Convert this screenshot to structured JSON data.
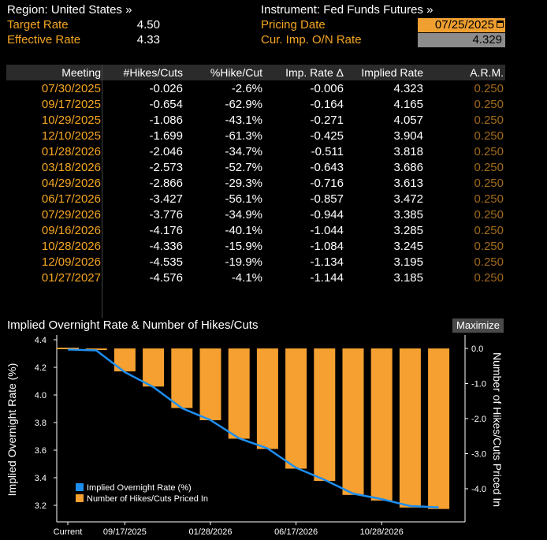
{
  "header": {
    "region_label": "Region: United States »",
    "target_label": "Target Rate",
    "target_value": "4.50",
    "effective_label": "Effective Rate",
    "effective_value": "4.33",
    "instrument_label": "Instrument: Fed Funds Futures »",
    "pricing_label": "Pricing Date",
    "pricing_value": "07/25/2025",
    "cur_imp_label": "Cur. Imp. O/N Rate",
    "cur_imp_value": "4.329"
  },
  "table": {
    "columns": [
      "Meeting",
      "#Hikes/Cuts",
      "%Hike/Cut",
      "Imp. Rate Δ",
      "Implied Rate",
      "A.R.M."
    ],
    "rows": [
      [
        "07/30/2025",
        "-0.026",
        "-2.6%",
        "-0.006",
        "4.323",
        "0.250"
      ],
      [
        "09/17/2025",
        "-0.654",
        "-62.9%",
        "-0.164",
        "4.165",
        "0.250"
      ],
      [
        "10/29/2025",
        "-1.086",
        "-43.1%",
        "-0.271",
        "4.057",
        "0.250"
      ],
      [
        "12/10/2025",
        "-1.699",
        "-61.3%",
        "-0.425",
        "3.904",
        "0.250"
      ],
      [
        "01/28/2026",
        "-2.046",
        "-34.7%",
        "-0.511",
        "3.818",
        "0.250"
      ],
      [
        "03/18/2026",
        "-2.573",
        "-52.7%",
        "-0.643",
        "3.686",
        "0.250"
      ],
      [
        "04/29/2026",
        "-2.866",
        "-29.3%",
        "-0.716",
        "3.613",
        "0.250"
      ],
      [
        "06/17/2026",
        "-3.427",
        "-56.1%",
        "-0.857",
        "3.472",
        "0.250"
      ],
      [
        "07/29/2026",
        "-3.776",
        "-34.9%",
        "-0.944",
        "3.385",
        "0.250"
      ],
      [
        "09/16/2026",
        "-4.176",
        "-40.1%",
        "-1.044",
        "3.285",
        "0.250"
      ],
      [
        "10/28/2026",
        "-4.336",
        "-15.9%",
        "-1.084",
        "3.245",
        "0.250"
      ],
      [
        "12/09/2026",
        "-4.535",
        "-19.9%",
        "-1.134",
        "3.195",
        "0.250"
      ],
      [
        "01/27/2027",
        "-4.576",
        "-4.1%",
        "-1.144",
        "3.185",
        "0.250"
      ]
    ]
  },
  "chart_panel": {
    "title": "Implied Overnight Rate & Number of Hikes/Cuts",
    "maximize_label": "Maximize"
  },
  "chart_data": {
    "type": "bar",
    "x_tick_labels": [
      "Current",
      "09/17/2025",
      "01/28/2026",
      "06/17/2026",
      "10/28/2026"
    ],
    "categories": [
      "Current",
      "07/30/2025",
      "09/17/2025",
      "10/29/2025",
      "12/10/2025",
      "01/28/2026",
      "03/18/2026",
      "04/29/2026",
      "06/17/2026",
      "07/29/2026",
      "09/16/2026",
      "10/28/2026",
      "12/09/2026",
      "01/27/2027"
    ],
    "series": [
      {
        "name": "Implied Overnight Rate (%)",
        "type": "line",
        "axis": "left",
        "color": "#1e8ff0",
        "values": [
          4.329,
          4.323,
          4.165,
          4.057,
          3.904,
          3.818,
          3.686,
          3.613,
          3.472,
          3.385,
          3.285,
          3.245,
          3.195,
          3.185
        ]
      },
      {
        "name": "Number of Hikes/Cuts Priced In",
        "type": "bar",
        "axis": "right",
        "color": "#f5a030",
        "values": [
          0,
          -0.026,
          -0.654,
          -1.086,
          -1.699,
          -2.046,
          -2.573,
          -2.866,
          -3.427,
          -3.776,
          -4.176,
          -4.336,
          -4.535,
          -4.576
        ]
      }
    ],
    "ylabel_left": "Implied Overnight Rate (%)",
    "ylabel_right": "Number of Hikes/Cuts Priced In",
    "ylim_left": [
      3.13,
      4.42
    ],
    "ylim_right": [
      -4.6,
      0.1
    ],
    "yticks_left": [
      "4.4",
      "4.2",
      "4.0",
      "3.8",
      "3.6",
      "3.4",
      "3.2"
    ],
    "yticks_right": [
      "0.0",
      "-1.0",
      "-2.0",
      "-3.0",
      "-4.0"
    ],
    "legend_placement": "bottom-left",
    "grid": false
  }
}
